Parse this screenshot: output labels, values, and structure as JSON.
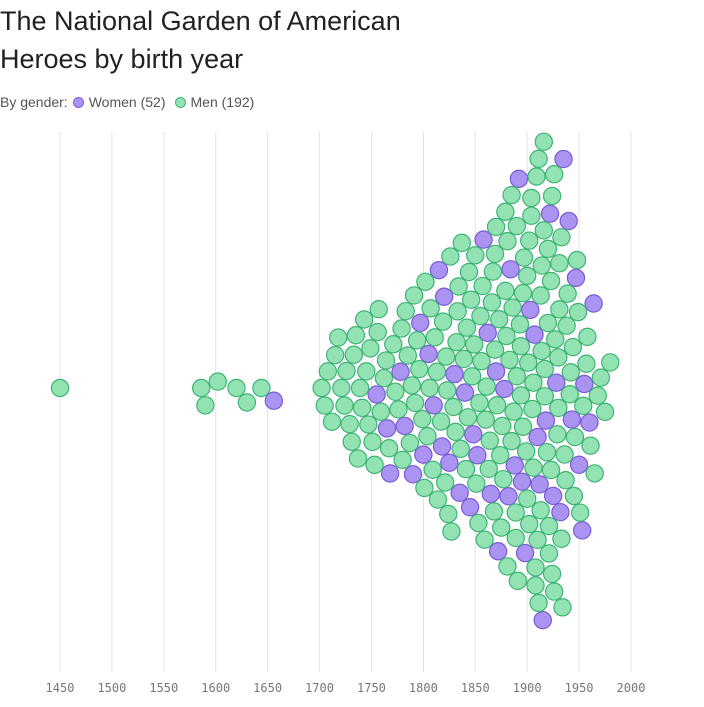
{
  "chart_data": {
    "type": "beeswarm",
    "title": "The National Garden of American Heroes by birth year",
    "legend_title": "By gender:",
    "xlim": [
      1450,
      2000
    ],
    "xticks": [
      1450,
      1500,
      1550,
      1600,
      1650,
      1700,
      1750,
      1800,
      1850,
      1900,
      1950,
      2000
    ],
    "grid": true,
    "series": [
      {
        "name": "Women (52)",
        "color": "#ab93f2",
        "values": [
          1656,
          1755,
          1765,
          1768,
          1778,
          1782,
          1790,
          1797,
          1800,
          1805,
          1810,
          1815,
          1818,
          1820,
          1825,
          1830,
          1835,
          1840,
          1845,
          1848,
          1852,
          1858,
          1862,
          1865,
          1870,
          1872,
          1878,
          1882,
          1884,
          1888,
          1892,
          1895,
          1898,
          1903,
          1907,
          1910,
          1912,
          1915,
          1918,
          1922,
          1925,
          1928,
          1932,
          1935,
          1940,
          1943,
          1947,
          1950,
          1953,
          1955,
          1960,
          1964
        ]
      },
      {
        "name": "Men (192)",
        "color": "#93e2b4",
        "values": [
          1450,
          1586,
          1590,
          1602,
          1620,
          1630,
          1644,
          1702,
          1705,
          1708,
          1712,
          1715,
          1718,
          1721,
          1724,
          1726,
          1729,
          1731,
          1733,
          1735,
          1737,
          1739,
          1741,
          1743,
          1745,
          1747,
          1749,
          1751,
          1753,
          1756,
          1757,
          1759,
          1762,
          1764,
          1767,
          1771,
          1773,
          1776,
          1779,
          1780,
          1783,
          1785,
          1787,
          1789,
          1791,
          1792,
          1794,
          1796,
          1799,
          1801,
          1802,
          1804,
          1806,
          1807,
          1809,
          1811,
          1813,
          1814,
          1817,
          1819,
          1821,
          1822,
          1823,
          1824,
          1826,
          1827,
          1829,
          1831,
          1832,
          1833,
          1834,
          1836,
          1837,
          1839,
          1841,
          1842,
          1843,
          1844,
          1846,
          1847,
          1849,
          1850,
          1851,
          1853,
          1854,
          1855,
          1856,
          1857,
          1859,
          1860,
          1861,
          1863,
          1864,
          1866,
          1867,
          1868,
          1869,
          1869,
          1870,
          1871,
          1873,
          1874,
          1875,
          1876,
          1877,
          1879,
          1879,
          1880,
          1881,
          1881,
          1883,
          1885,
          1885,
          1886,
          1887,
          1889,
          1889,
          1890,
          1890,
          1891,
          1893,
          1894,
          1894,
          1896,
          1896,
          1897,
          1899,
          1900,
          1900,
          1901,
          1902,
          1902,
          1904,
          1904,
          1905,
          1906,
          1906,
          1908,
          1908,
          1909,
          1910,
          1911,
          1911,
          1913,
          1913,
          1914,
          1914,
          1916,
          1916,
          1917,
          1917,
          1919,
          1920,
          1920,
          1921,
          1921,
          1923,
          1923,
          1924,
          1924,
          1926,
          1926,
          1927,
          1929,
          1930,
          1930,
          1931,
          1931,
          1933,
          1933,
          1934,
          1936,
          1937,
          1938,
          1939,
          1941,
          1942,
          1944,
          1945,
          1946,
          1948,
          1949,
          1951,
          1954,
          1957,
          1958,
          1961,
          1965,
          1968,
          1971,
          1975,
          1980
        ]
      }
    ]
  }
}
